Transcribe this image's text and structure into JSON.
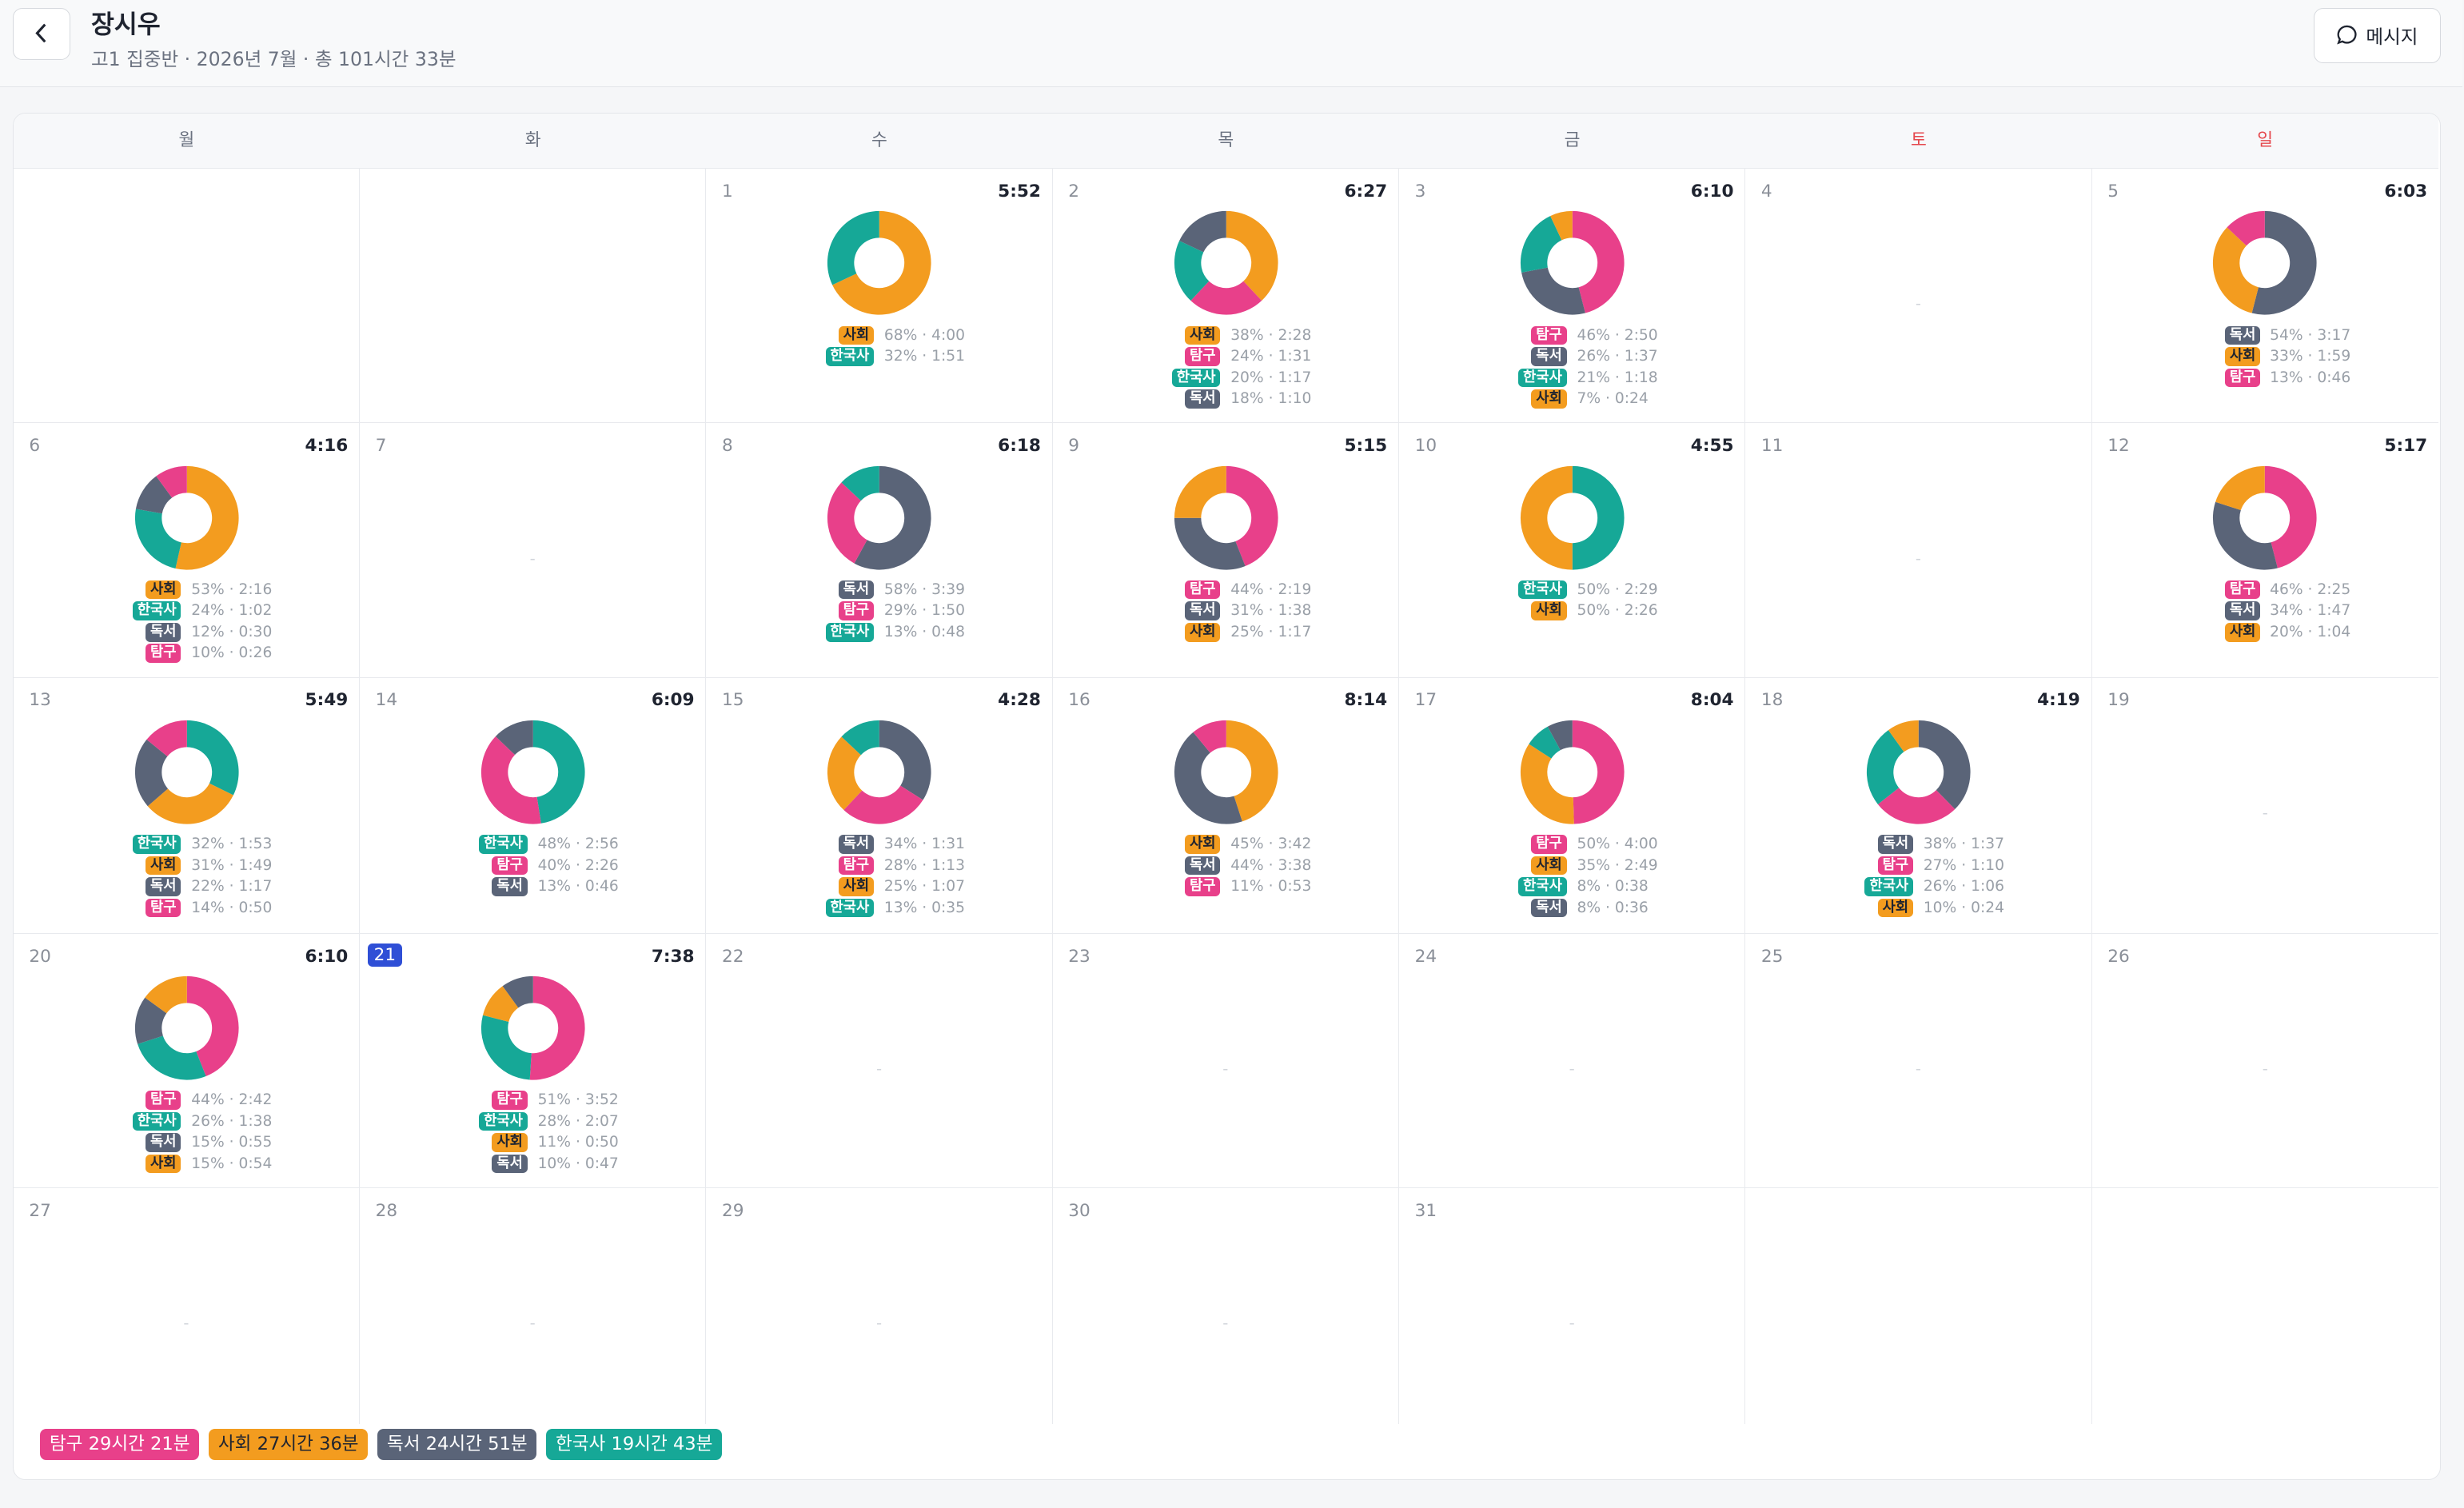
{
  "header": {
    "name": "장시우",
    "subtitle": "고1 집중반 · 2026년 7월 · 총 101시간 33분",
    "message_button": "메시지"
  },
  "weekdays": [
    "월",
    "화",
    "수",
    "목",
    "금",
    "토",
    "일"
  ],
  "weekend_color": "#e5484d",
  "colors": {
    "탐구": "#e8408a",
    "사회": "#f39c1f",
    "독서": "#5a6478",
    "한국사": "#16a897"
  },
  "days": [
    {
      "date": 1,
      "total": "5:52",
      "subjects": [
        {
          "name": "사회",
          "share": 68,
          "stat": "68% · 4:00"
        },
        {
          "name": "한국사",
          "share": 32,
          "stat": "32% · 1:51"
        }
      ]
    },
    {
      "date": 2,
      "total": "6:27",
      "subjects": [
        {
          "name": "사회",
          "share": 38,
          "stat": "38% · 2:28"
        },
        {
          "name": "탐구",
          "share": 24,
          "stat": "24% · 1:31"
        },
        {
          "name": "한국사",
          "share": 20,
          "stat": "20% · 1:17"
        },
        {
          "name": "독서",
          "share": 18,
          "stat": "18% · 1:10"
        }
      ]
    },
    {
      "date": 3,
      "total": "6:10",
      "subjects": [
        {
          "name": "탐구",
          "share": 46,
          "stat": "46% · 2:50"
        },
        {
          "name": "독서",
          "share": 26,
          "stat": "26% · 1:37"
        },
        {
          "name": "한국사",
          "share": 21,
          "stat": "21% · 1:18"
        },
        {
          "name": "사회",
          "share": 7,
          "stat": "7% · 0:24"
        }
      ]
    },
    {
      "date": 4,
      "placeholder": "-"
    },
    {
      "date": 5,
      "total": "6:03",
      "subjects": [
        {
          "name": "독서",
          "share": 54,
          "stat": "54% · 3:17"
        },
        {
          "name": "사회",
          "share": 33,
          "stat": "33% · 1:59"
        },
        {
          "name": "탐구",
          "share": 13,
          "stat": "13% · 0:46"
        }
      ]
    },
    {
      "date": 6,
      "total": "4:16",
      "subjects": [
        {
          "name": "사회",
          "share": 53,
          "stat": "53% · 2:16"
        },
        {
          "name": "한국사",
          "share": 24,
          "stat": "24% · 1:02"
        },
        {
          "name": "독서",
          "share": 12,
          "stat": "12% · 0:30"
        },
        {
          "name": "탐구",
          "share": 10,
          "stat": "10% · 0:26"
        }
      ]
    },
    {
      "date": 7,
      "placeholder": "-"
    },
    {
      "date": 8,
      "total": "6:18",
      "subjects": [
        {
          "name": "독서",
          "share": 58,
          "stat": "58% · 3:39"
        },
        {
          "name": "탐구",
          "share": 29,
          "stat": "29% · 1:50"
        },
        {
          "name": "한국사",
          "share": 13,
          "stat": "13% · 0:48"
        }
      ]
    },
    {
      "date": 9,
      "total": "5:15",
      "subjects": [
        {
          "name": "탐구",
          "share": 44,
          "stat": "44% · 2:19"
        },
        {
          "name": "독서",
          "share": 31,
          "stat": "31% · 1:38"
        },
        {
          "name": "사회",
          "share": 25,
          "stat": "25% · 1:17"
        }
      ]
    },
    {
      "date": 10,
      "total": "4:55",
      "subjects": [
        {
          "name": "한국사",
          "share": 50,
          "stat": "50% · 2:29"
        },
        {
          "name": "사회",
          "share": 50,
          "stat": "50% · 2:26"
        }
      ]
    },
    {
      "date": 11,
      "placeholder": "-"
    },
    {
      "date": 12,
      "total": "5:17",
      "subjects": [
        {
          "name": "탐구",
          "share": 46,
          "stat": "46% · 2:25"
        },
        {
          "name": "독서",
          "share": 34,
          "stat": "34% · 1:47"
        },
        {
          "name": "사회",
          "share": 20,
          "stat": "20% · 1:04"
        }
      ]
    },
    {
      "date": 13,
      "total": "5:49",
      "subjects": [
        {
          "name": "한국사",
          "share": 32,
          "stat": "32% · 1:53"
        },
        {
          "name": "사회",
          "share": 31,
          "stat": "31% · 1:49"
        },
        {
          "name": "독서",
          "share": 22,
          "stat": "22% · 1:17"
        },
        {
          "name": "탐구",
          "share": 14,
          "stat": "14% · 0:50"
        }
      ]
    },
    {
      "date": 14,
      "total": "6:09",
      "subjects": [
        {
          "name": "한국사",
          "share": 48,
          "stat": "48% · 2:56"
        },
        {
          "name": "탐구",
          "share": 40,
          "stat": "40% · 2:26"
        },
        {
          "name": "독서",
          "share": 13,
          "stat": "13% · 0:46"
        }
      ]
    },
    {
      "date": 15,
      "total": "4:28",
      "subjects": [
        {
          "name": "독서",
          "share": 34,
          "stat": "34% · 1:31"
        },
        {
          "name": "탐구",
          "share": 28,
          "stat": "28% · 1:13"
        },
        {
          "name": "사회",
          "share": 25,
          "stat": "25% · 1:07"
        },
        {
          "name": "한국사",
          "share": 13,
          "stat": "13% · 0:35"
        }
      ]
    },
    {
      "date": 16,
      "total": "8:14",
      "subjects": [
        {
          "name": "사회",
          "share": 45,
          "stat": "45% · 3:42"
        },
        {
          "name": "독서",
          "share": 44,
          "stat": "44% · 3:38"
        },
        {
          "name": "탐구",
          "share": 11,
          "stat": "11% · 0:53"
        }
      ]
    },
    {
      "date": 17,
      "total": "8:04",
      "subjects": [
        {
          "name": "탐구",
          "share": 50,
          "stat": "50% · 4:00"
        },
        {
          "name": "사회",
          "share": 35,
          "stat": "35% · 2:49"
        },
        {
          "name": "한국사",
          "share": 8,
          "stat": "8% · 0:38"
        },
        {
          "name": "독서",
          "share": 8,
          "stat": "8% · 0:36"
        }
      ]
    },
    {
      "date": 18,
      "total": "4:19",
      "subjects": [
        {
          "name": "독서",
          "share": 38,
          "stat": "38% · 1:37"
        },
        {
          "name": "탐구",
          "share": 27,
          "stat": "27% · 1:10"
        },
        {
          "name": "한국사",
          "share": 26,
          "stat": "26% · 1:06"
        },
        {
          "name": "사회",
          "share": 10,
          "stat": "10% · 0:24"
        }
      ]
    },
    {
      "date": 19,
      "placeholder": "-"
    },
    {
      "date": 20,
      "total": "6:10",
      "subjects": [
        {
          "name": "탐구",
          "share": 44,
          "stat": "44% · 2:42"
        },
        {
          "name": "한국사",
          "share": 26,
          "stat": "26% · 1:38"
        },
        {
          "name": "독서",
          "share": 15,
          "stat": "15% · 0:55"
        },
        {
          "name": "사회",
          "share": 15,
          "stat": "15% · 0:54"
        }
      ]
    },
    {
      "date": 21,
      "today": true,
      "total": "7:38",
      "subjects": [
        {
          "name": "탐구",
          "share": 51,
          "stat": "51% · 3:52"
        },
        {
          "name": "한국사",
          "share": 28,
          "stat": "28% · 2:07"
        },
        {
          "name": "사회",
          "share": 11,
          "stat": "11% · 0:50"
        },
        {
          "name": "독서",
          "share": 10,
          "stat": "10% · 0:47"
        }
      ]
    },
    {
      "date": 22,
      "placeholder": "-"
    },
    {
      "date": 23,
      "placeholder": "-"
    },
    {
      "date": 24,
      "placeholder": "-"
    },
    {
      "date": 25,
      "placeholder": "-"
    },
    {
      "date": 26,
      "placeholder": "-"
    },
    {
      "date": 27,
      "placeholder": "-"
    },
    {
      "date": 28,
      "placeholder": "-"
    },
    {
      "date": 29,
      "placeholder": "-"
    },
    {
      "date": 30,
      "placeholder": "-"
    },
    {
      "date": 31,
      "placeholder": "-"
    }
  ],
  "legend": [
    {
      "label": "탐구 29시간 21분",
      "color": "#e8408a"
    },
    {
      "label": "사회 27시간 36분",
      "color": "#f39c1f"
    },
    {
      "label": "독서 24시간 51분",
      "color": "#5a6478"
    },
    {
      "label": "한국사 19시간 43분",
      "color": "#16a897"
    }
  ]
}
